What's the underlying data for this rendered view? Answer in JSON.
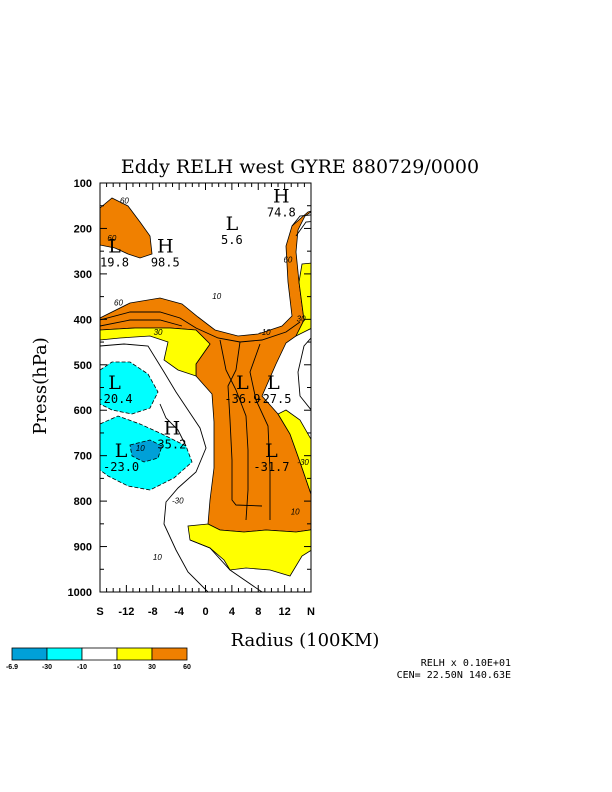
{
  "chart_data": {
    "type": "contour",
    "title": "Eddy RELH west GYRE 880729/0000",
    "xlabel": "Radius (100KM)",
    "ylabel": "Press(hPa)",
    "xlim": [
      -16,
      16
    ],
    "ylim": [
      1000,
      100
    ],
    "x_ticks": [
      {
        "value": -16,
        "label": "S"
      },
      {
        "value": -12,
        "label": "-12"
      },
      {
        "value": -8,
        "label": "-8"
      },
      {
        "value": -4,
        "label": "-4"
      },
      {
        "value": 0,
        "label": "0"
      },
      {
        "value": 4,
        "label": "4"
      },
      {
        "value": 8,
        "label": "8"
      },
      {
        "value": 12,
        "label": "12"
      },
      {
        "value": 16,
        "label": "N"
      }
    ],
    "y_ticks": [
      100,
      200,
      300,
      400,
      500,
      600,
      700,
      800,
      900,
      1000
    ],
    "extrema": [
      {
        "type": "L",
        "x": -13.8,
        "p": 240,
        "value": "19.8"
      },
      {
        "type": "H",
        "x": -6.1,
        "p": 240,
        "value": "98.5"
      },
      {
        "type": "L",
        "x": 4.0,
        "p": 190,
        "value": "5.6"
      },
      {
        "type": "H",
        "x": 11.5,
        "p": 130,
        "value": "74.8"
      },
      {
        "type": "L",
        "x": -13.8,
        "p": 540,
        "value": "-20.4"
      },
      {
        "type": "L",
        "x": 5.6,
        "p": 540,
        "value": "-36.9"
      },
      {
        "type": "L",
        "x": 10.3,
        "p": 540,
        "value": "-27.5"
      },
      {
        "type": "L",
        "x": -12.8,
        "p": 690,
        "value": "-23.0"
      },
      {
        "type": "H",
        "x": -5.1,
        "p": 640,
        "value": "35.2"
      },
      {
        "type": "L",
        "x": 10.0,
        "p": 690,
        "value": "-31.7"
      }
    ],
    "contour_labels": [
      {
        "text": "60",
        "x": -12.3,
        "p": 145
      },
      {
        "text": "60",
        "x": -14.2,
        "p": 228
      },
      {
        "text": "60",
        "x": -13.2,
        "p": 370
      },
      {
        "text": "30",
        "x": -7.2,
        "p": 435
      },
      {
        "text": "10",
        "x": 1.7,
        "p": 355
      },
      {
        "text": "60",
        "x": 12.5,
        "p": 275
      },
      {
        "text": "30",
        "x": 14.5,
        "p": 405
      },
      {
        "text": "-10",
        "x": 9.0,
        "p": 435
      },
      {
        "text": "10",
        "x": -9.9,
        "p": 690
      },
      {
        "text": "-30",
        "x": -4.2,
        "p": 805
      },
      {
        "text": "10",
        "x": -7.3,
        "p": 930
      },
      {
        "text": "-30",
        "x": 14.8,
        "p": 720
      },
      {
        "text": "10",
        "x": 13.6,
        "p": 830
      }
    ],
    "legend": {
      "labels": [
        "-6.9",
        "-30",
        "-10",
        "10",
        "30",
        "60"
      ],
      "colors": [
        "#00a0d8",
        "#00ffff",
        "#ffffff",
        "#ffff00",
        "#f08000"
      ]
    },
    "info_lines": [
      "RELH x  0.10E+01",
      "CEN= 22.50N  140.63E"
    ]
  }
}
